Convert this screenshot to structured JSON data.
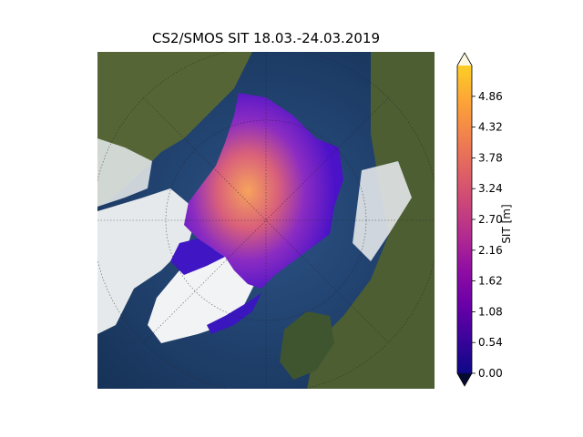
{
  "title": "CS2/SMOS SIT 18.03.-24.03.2019",
  "colorbar": {
    "label": "SIT [m]",
    "ticks": [
      "0.00",
      "0.54",
      "1.08",
      "1.62",
      "2.16",
      "2.70",
      "3.24",
      "3.78",
      "4.32",
      "4.86"
    ],
    "min": 0.0,
    "max": 5.4,
    "extend": "both",
    "colormap": [
      "#0d0887",
      "#3a049a",
      "#6a00a8",
      "#8f0da4",
      "#b12a90",
      "#cc4778",
      "#e16462",
      "#f2844b",
      "#fca636",
      "#fcce25"
    ],
    "under_color": "#050a30",
    "over_color": "#fff8e0"
  },
  "map": {
    "projection": "north-polar-stereographic",
    "ocean_color": "#1f3d6a",
    "land_color": "#4a5a32",
    "snow_color": "#e8ecee",
    "ice_thin_color": "#4b12c8",
    "ice_thick_color": "#f4a259"
  }
}
